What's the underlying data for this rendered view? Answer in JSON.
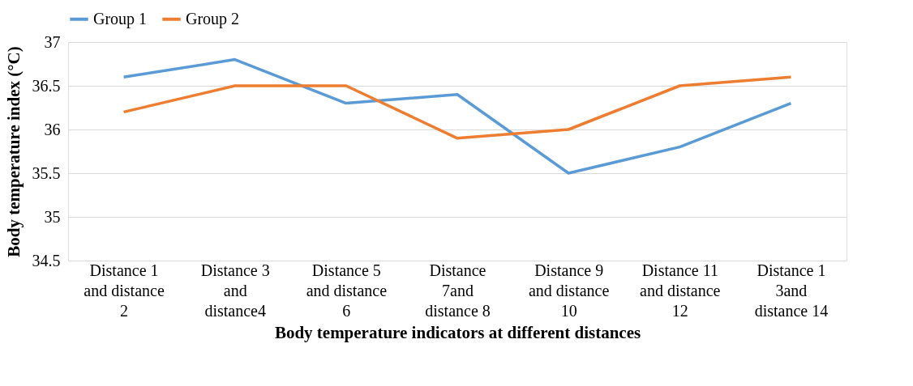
{
  "chart_data": {
    "type": "line",
    "xlabel": "Body temperature indicators at different distances",
    "ylabel": "Body temperature index (°C)",
    "categories": [
      "Distance 1 and distance 2",
      "Distance 3 and distance4",
      "Distance 5 and distance 6",
      "Distance 7and distance 8",
      "Distance 9 and distance 10",
      "Distance 11 and distance 12",
      "Distance 1 3and distance 14"
    ],
    "series": [
      {
        "name": "Group 1",
        "color": "#5b9bd5",
        "values": [
          36.6,
          36.8,
          36.3,
          36.4,
          35.5,
          35.8,
          36.3
        ]
      },
      {
        "name": "Group 2",
        "color": "#ed7d31",
        "values": [
          36.2,
          36.5,
          36.5,
          35.9,
          36.0,
          36.5,
          36.6
        ]
      }
    ],
    "ylim": [
      34.5,
      37
    ],
    "yticks": [
      34.5,
      35,
      35.5,
      36,
      36.5,
      37
    ],
    "grid": "y",
    "legend": "top",
    "marker": "none",
    "line_style": "solid"
  }
}
